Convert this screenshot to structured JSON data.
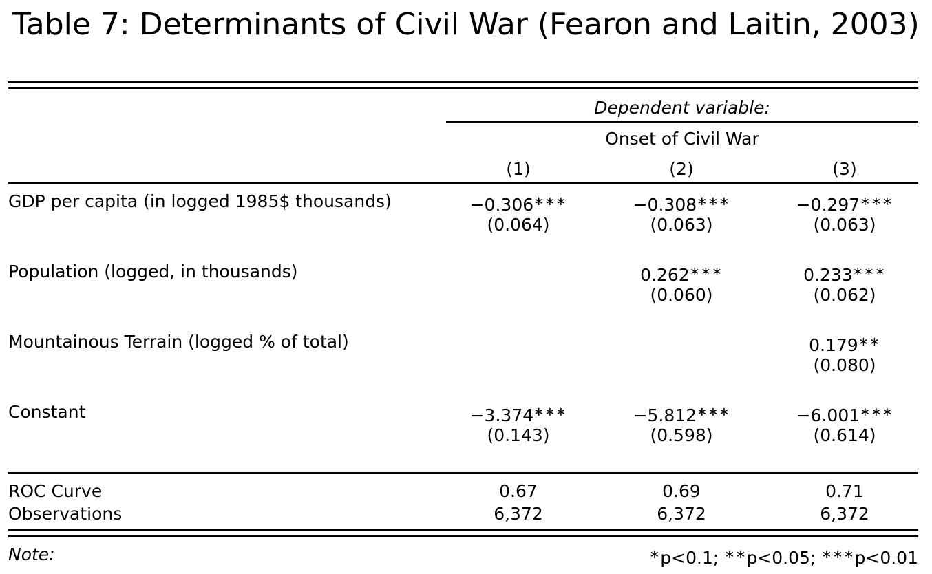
{
  "title": "Table 7: Determinants of Civil War (Fearon and Laitin, 2003)",
  "header": {
    "dependent_variable": "Dependent variable:",
    "dv_name": "Onset of Civil War",
    "columns": [
      "(1)",
      "(2)",
      "(3)"
    ]
  },
  "rows": [
    {
      "label": "GDP per capita (in logged 1985$ thousands)",
      "coefs": [
        {
          "value": "−0.306",
          "stars": "∗∗∗",
          "se": "(0.064)"
        },
        {
          "value": "−0.308",
          "stars": "∗∗∗",
          "se": "(0.063)"
        },
        {
          "value": "−0.297",
          "stars": "∗∗∗",
          "se": "(0.063)"
        }
      ]
    },
    {
      "label": "Population (logged, in thousands)",
      "coefs": [
        {
          "value": "",
          "stars": "",
          "se": ""
        },
        {
          "value": "0.262",
          "stars": "∗∗∗",
          "se": "(0.060)"
        },
        {
          "value": "0.233",
          "stars": "∗∗∗",
          "se": "(0.062)"
        }
      ]
    },
    {
      "label": "Mountainous Terrain (logged % of total)",
      "coefs": [
        {
          "value": "",
          "stars": "",
          "se": ""
        },
        {
          "value": "",
          "stars": "",
          "se": ""
        },
        {
          "value": "0.179",
          "stars": "∗∗",
          "se": "(0.080)"
        }
      ]
    },
    {
      "label": "Constant",
      "coefs": [
        {
          "value": "−3.374",
          "stars": "∗∗∗",
          "se": "(0.143)"
        },
        {
          "value": "−5.812",
          "stars": "∗∗∗",
          "se": "(0.598)"
        },
        {
          "value": "−6.001",
          "stars": "∗∗∗",
          "se": "(0.614)"
        }
      ]
    }
  ],
  "stats": [
    {
      "label": "ROC Curve",
      "values": [
        "0.67",
        "0.69",
        "0.71"
      ]
    },
    {
      "label": "Observations",
      "values": [
        "6,372",
        "6,372",
        "6,372"
      ]
    }
  ],
  "note": {
    "label": "Note:",
    "levels": [
      {
        "stars": "∗",
        "text": "p<0.1;"
      },
      {
        "stars": "∗∗",
        "text": "p<0.05;"
      },
      {
        "stars": "∗∗∗",
        "text": "p<0.01"
      }
    ]
  }
}
